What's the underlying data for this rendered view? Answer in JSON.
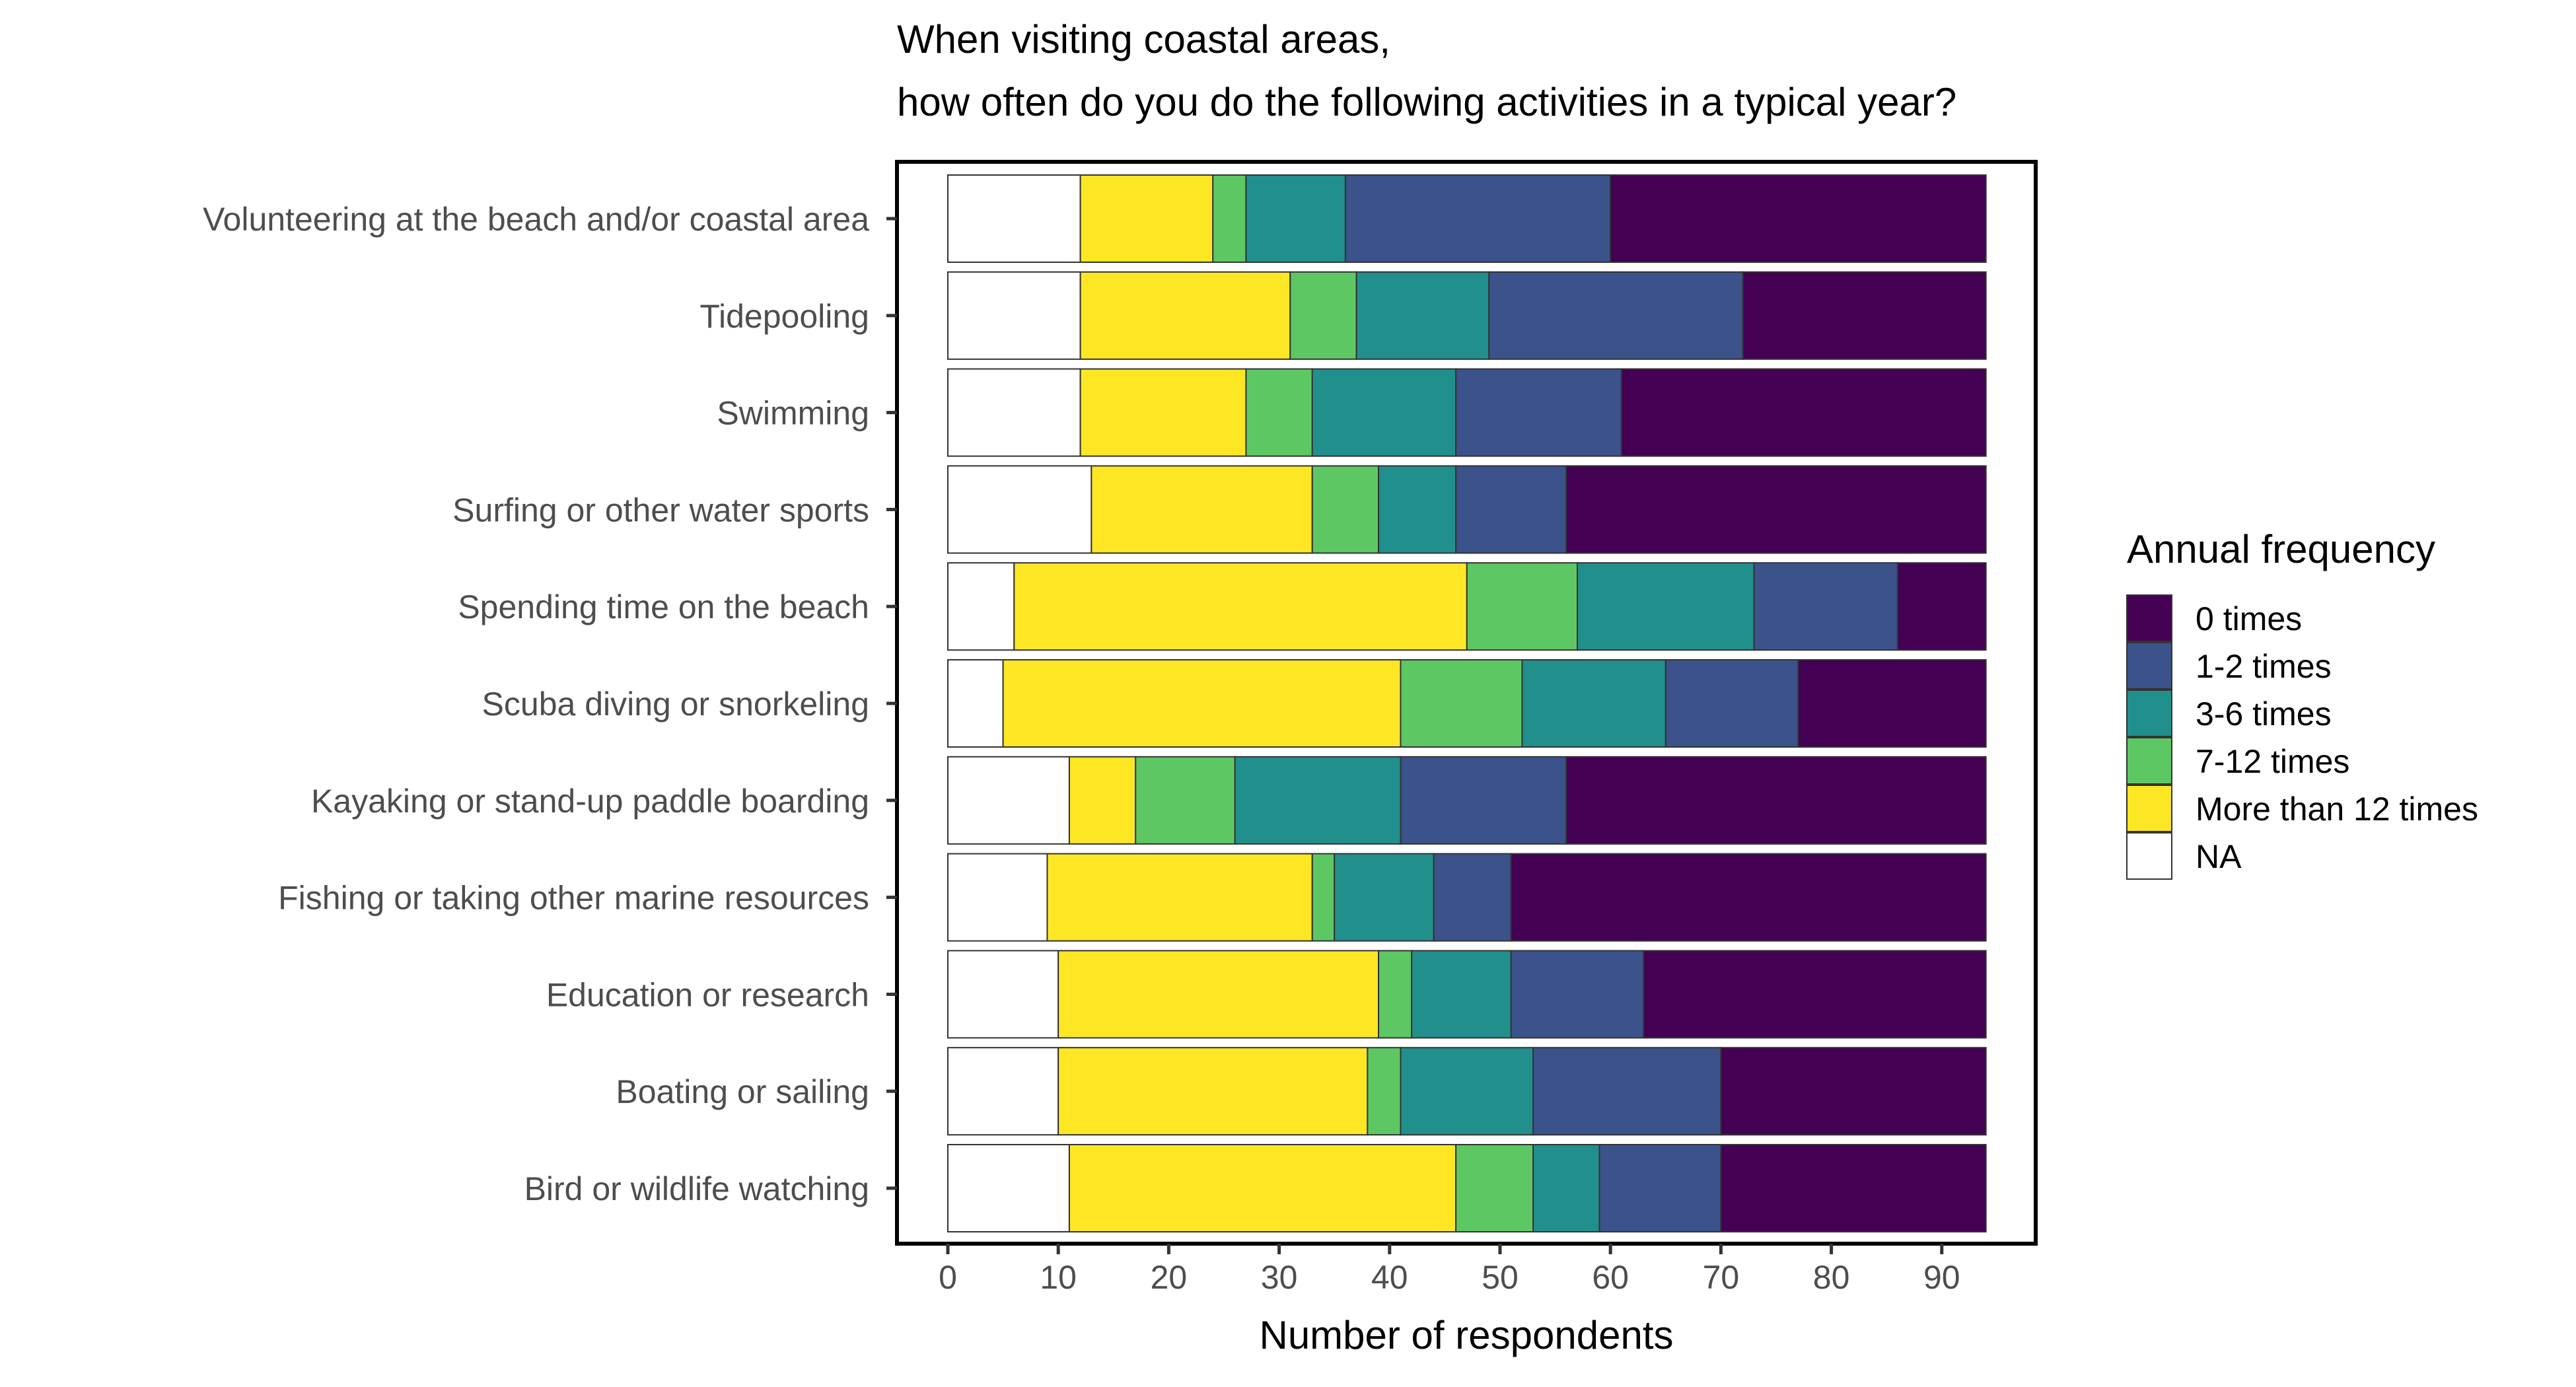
{
  "chart_data": {
    "type": "bar",
    "orientation": "horizontal",
    "stacked": true,
    "title_lines": [
      "When visiting coastal areas,",
      "how often do you do the following activities in a typical year?"
    ],
    "xlabel": "Number of respondents",
    "ylabel": "",
    "xlim": [
      -4.5,
      98.5
    ],
    "x_ticks": [
      0,
      10,
      20,
      30,
      40,
      50,
      60,
      70,
      80,
      90
    ],
    "grid": false,
    "legend": {
      "title": "Annual frequency",
      "placement": "right",
      "entries": [
        "0 times",
        "1-2 times",
        "3-6 times",
        "7-12 times",
        "More than 12 times",
        "NA"
      ]
    },
    "categories": [
      "Volunteering at the beach and/or coastal area",
      "Tidepooling",
      "Swimming",
      "Surfing or other water sports",
      "Spending time on the beach",
      "Scuba diving or snorkeling",
      "Kayaking or stand-up paddle boarding",
      "Fishing or taking other marine resources",
      "Education or research",
      "Boating or sailing",
      "Bird or wildlife watching"
    ],
    "stack_order": [
      "NA",
      "More than 12 times",
      "7-12 times",
      "3-6 times",
      "1-2 times",
      "0 times"
    ],
    "series": [
      {
        "name": "NA",
        "color": "#FFFFFF",
        "values": [
          12,
          12,
          12,
          13,
          6,
          5,
          11,
          9,
          10,
          10,
          11
        ]
      },
      {
        "name": "More than 12 times",
        "color": "#FDE725",
        "values": [
          12,
          19,
          15,
          20,
          41,
          36,
          6,
          24,
          29,
          28,
          35
        ]
      },
      {
        "name": "7-12 times",
        "color": "#5DC863",
        "values": [
          3,
          6,
          6,
          6,
          10,
          11,
          9,
          2,
          3,
          3,
          7
        ]
      },
      {
        "name": "3-6 times",
        "color": "#21908C",
        "values": [
          9,
          12,
          13,
          7,
          16,
          13,
          15,
          9,
          9,
          12,
          6
        ]
      },
      {
        "name": "1-2 times",
        "color": "#3B528B",
        "values": [
          24,
          23,
          15,
          10,
          13,
          12,
          15,
          7,
          12,
          17,
          11
        ]
      },
      {
        "name": "0 times",
        "color": "#440154",
        "values": [
          34,
          22,
          33,
          38,
          8,
          17,
          38,
          43,
          31,
          24,
          24
        ]
      }
    ]
  }
}
